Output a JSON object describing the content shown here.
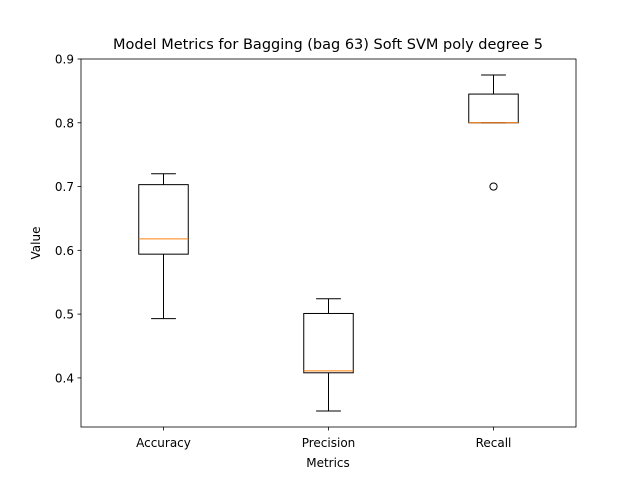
{
  "chart_data": {
    "type": "box",
    "title": "Model Metrics for Bagging (bag 63) Soft SVM poly degree 5",
    "xlabel": "Metrics",
    "ylabel": "Value",
    "ylim": [
      0.323,
      0.9
    ],
    "yticks": [
      0.4,
      0.5,
      0.6,
      0.7,
      0.8,
      0.9
    ],
    "ytick_labels": [
      "0.4",
      "0.5",
      "0.6",
      "0.7",
      "0.8",
      "0.9"
    ],
    "categories": [
      "Accuracy",
      "Precision",
      "Recall"
    ],
    "boxes": [
      {
        "whisker_low": 0.493,
        "q1": 0.594,
        "median": 0.618,
        "q3": 0.703,
        "whisker_high": 0.72,
        "outliers": []
      },
      {
        "whisker_low": 0.348,
        "q1": 0.408,
        "median": 0.411,
        "q3": 0.501,
        "whisker_high": 0.524,
        "outliers": []
      },
      {
        "whisker_low": 0.8,
        "q1": 0.8,
        "median": 0.8,
        "q3": 0.845,
        "whisker_high": 0.875,
        "outliers": [
          0.7
        ]
      }
    ],
    "colors": {
      "box": "#000000",
      "median": "#ff7f0e",
      "outlier": "#000000"
    },
    "grid": false
  }
}
